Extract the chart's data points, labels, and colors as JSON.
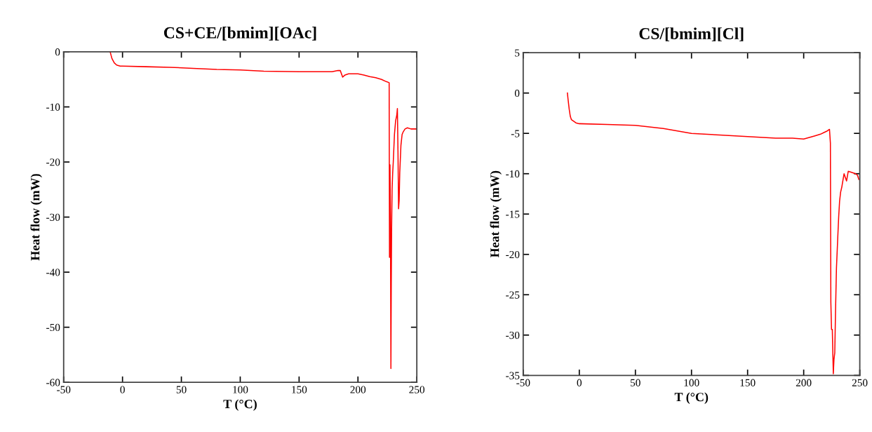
{
  "chart_data": [
    {
      "type": "line",
      "title": "CS+CE/[bmim][OAc]",
      "xlabel": "T (°C)",
      "ylabel": "Heat flow (mW)",
      "xlim": [
        -50,
        250
      ],
      "xticks": [
        -50,
        0,
        50,
        100,
        150,
        200,
        250
      ],
      "ylim": [
        -60,
        0
      ],
      "yticks": [
        -60,
        -50,
        -40,
        -30,
        -20,
        -10,
        0
      ],
      "marker": "none",
      "line_style": "solid",
      "series": [
        {
          "color": "#ff0000",
          "x": [
            -10.5,
            -9,
            -7,
            -5,
            -2,
            0,
            20,
            40,
            60,
            80,
            100,
            120,
            150,
            178,
            183,
            185,
            187,
            189,
            192,
            200,
            205,
            210,
            215,
            220,
            224,
            226.5,
            226.8,
            227.2,
            227.6,
            228.0,
            228.3,
            228.6,
            229.0,
            229.5,
            230.0,
            231.0,
            232.0,
            233.0,
            233.5,
            234.0,
            234.5,
            235.0,
            235.5,
            236.5,
            237.5,
            238.5,
            240,
            242,
            245,
            250
          ],
          "values": [
            0,
            -1.2,
            -2.0,
            -2.4,
            -2.6,
            -2.6,
            -2.7,
            -2.8,
            -3.0,
            -3.2,
            -3.3,
            -3.5,
            -3.6,
            -3.6,
            -3.4,
            -3.4,
            -4.6,
            -4.2,
            -4.0,
            -4.0,
            -4.2,
            -4.5,
            -4.7,
            -5.0,
            -5.4,
            -5.6,
            -37.3,
            -20.5,
            -30,
            -57.5,
            -42,
            -32,
            -25,
            -22,
            -20,
            -15,
            -12.5,
            -11.5,
            -10.3,
            -18,
            -28.5,
            -27,
            -22,
            -17,
            -15,
            -14.5,
            -14,
            -13.8,
            -14,
            -14
          ]
        }
      ]
    },
    {
      "type": "line",
      "title": "CS/[bmim][Cl]",
      "xlabel": "T (°C)",
      "ylabel": "Heat flow (mW)",
      "xlim": [
        -50,
        250
      ],
      "xticks": [
        -50,
        0,
        50,
        100,
        150,
        200,
        250
      ],
      "ylim": [
        -35,
        5
      ],
      "yticks": [
        -35,
        -30,
        -25,
        -20,
        -15,
        -10,
        -5,
        0,
        5
      ],
      "marker": "none",
      "line_style": "solid",
      "series": [
        {
          "color": "#ff0000",
          "x": [
            -10.6,
            -10,
            -9,
            -8,
            -7,
            -5,
            -3,
            0,
            25,
            50,
            75,
            100,
            125,
            150,
            175,
            190,
            200,
            205,
            210,
            215,
            218,
            221,
            223,
            223.8,
            224.2,
            224.8,
            225.5,
            226.4,
            227.0,
            227.7,
            228.4,
            229.2,
            230.4,
            231.2,
            232.0,
            232.9,
            233.9,
            235.0,
            236.0,
            237.2,
            238.2,
            239.7,
            242.2,
            246.3,
            248.0,
            249.1
          ],
          "values": [
            0,
            -0.8,
            -2.0,
            -2.9,
            -3.3,
            -3.5,
            -3.7,
            -3.8,
            -3.9,
            -4.0,
            -4.4,
            -5.0,
            -5.2,
            -5.4,
            -5.6,
            -5.6,
            -5.7,
            -5.5,
            -5.3,
            -5.1,
            -4.9,
            -4.7,
            -4.5,
            -6.2,
            -25.9,
            -29.3,
            -29.3,
            -34.8,
            -33,
            -32.2,
            -26.9,
            -21.7,
            -17.8,
            -15.3,
            -13.4,
            -12.3,
            -11.7,
            -10.8,
            -10.0,
            -10.5,
            -10.9,
            -9.7,
            -9.8,
            -10,
            -10.2,
            -10.7
          ]
        }
      ]
    }
  ]
}
